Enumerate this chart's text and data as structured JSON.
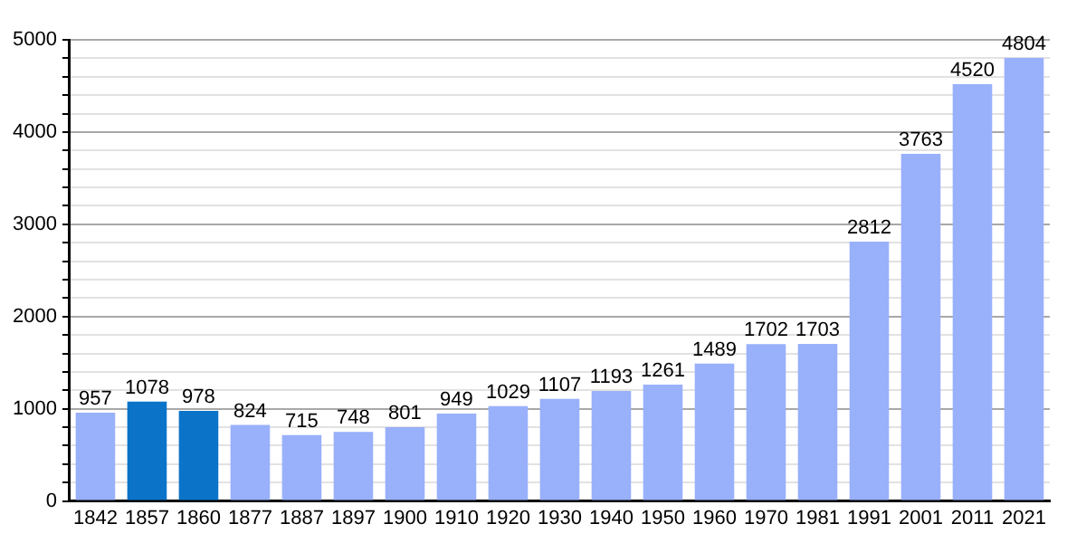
{
  "chart_data": {
    "type": "bar",
    "categories": [
      "1842",
      "1857",
      "1860",
      "1877",
      "1887",
      "1897",
      "1900",
      "1910",
      "1920",
      "1930",
      "1940",
      "1950",
      "1960",
      "1970",
      "1981",
      "1991",
      "2001",
      "2011",
      "2021"
    ],
    "values": [
      957,
      1078,
      978,
      824,
      715,
      748,
      801,
      949,
      1029,
      1107,
      1193,
      1261,
      1489,
      1702,
      1703,
      2812,
      3763,
      4520,
      4804
    ],
    "colors": [
      "#99b0fb",
      "#0b74c8",
      "#0b74c8",
      "#99b0fb",
      "#99b0fb",
      "#99b0fb",
      "#99b0fb",
      "#99b0fb",
      "#99b0fb",
      "#99b0fb",
      "#99b0fb",
      "#99b0fb",
      "#99b0fb",
      "#99b0fb",
      "#99b0fb",
      "#99b0fb",
      "#99b0fb",
      "#99b0fb",
      "#99b0fb"
    ],
    "ylim": [
      0,
      5000
    ],
    "yticks": [
      0,
      {
        "value": 200,
        "label": null
      },
      {
        "value": 400,
        "label": null
      },
      {
        "value": 600,
        "label": null
      },
      {
        "value": 800,
        "label": null
      },
      1000,
      {
        "value": 1200,
        "label": null
      },
      {
        "value": 1400,
        "label": null
      },
      {
        "value": 1600,
        "label": null
      },
      {
        "value": 1800,
        "label": null
      },
      2000,
      {
        "value": 2200,
        "label": null
      },
      {
        "value": 2400,
        "label": null
      },
      {
        "value": 2600,
        "label": null
      },
      {
        "value": 2800,
        "label": null
      },
      3000,
      {
        "value": 3200,
        "label": null
      },
      {
        "value": 3400,
        "label": null
      },
      {
        "value": 3600,
        "label": null
      },
      {
        "value": 3800,
        "label": null
      },
      4000,
      {
        "value": 4200,
        "label": null
      },
      {
        "value": 4400,
        "label": null
      },
      {
        "value": 4600,
        "label": null
      },
      {
        "value": 4800,
        "label": null
      },
      5000
    ],
    "grid": "y",
    "data_labels": true,
    "legend": false
  }
}
